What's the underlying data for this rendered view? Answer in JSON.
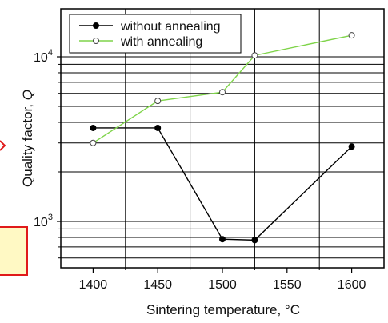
{
  "chart_data": {
    "type": "line",
    "xlabel": "Sintering temperature, °C",
    "ylabel_text": "Quality factor, ",
    "ylabel_var": "Q",
    "ylabel": "Quality factor, Q",
    "yscale": "log",
    "xlim": [
      1375,
      1625
    ],
    "ylim": [
      500,
      20000
    ],
    "xticks": [
      {
        "value": 1400,
        "label": "1400"
      },
      {
        "value": 1450,
        "label": "1450"
      },
      {
        "value": 1500,
        "label": "1500"
      },
      {
        "value": 1550,
        "label": "1550"
      },
      {
        "value": 1600,
        "label": "1600"
      }
    ],
    "x_gridlines": [
      1425,
      1475,
      1525,
      1575
    ],
    "yticks": [
      {
        "value": 1000,
        "base": "10",
        "exp": "3"
      },
      {
        "value": 10000,
        "base": "10",
        "exp": "4"
      }
    ],
    "y_gridlines": [
      600,
      700,
      800,
      900,
      1000,
      2000,
      3000,
      4000,
      5000,
      6000,
      7000,
      8000,
      9000,
      10000
    ],
    "grid": true,
    "legend": "top-left",
    "series": [
      {
        "name": "without annealing",
        "color": "#000000",
        "marker": "filled-circle",
        "x": [
          1400,
          1450,
          1500,
          1525,
          1600
        ],
        "y": [
          3700,
          3700,
          780,
          770,
          2850
        ]
      },
      {
        "name": "with annealing",
        "color": "#7fd44a",
        "marker": "open-circle",
        "x": [
          1400,
          1450,
          1500,
          1525,
          1600
        ],
        "y": [
          3000,
          5400,
          6100,
          10200,
          13500
        ]
      }
    ]
  },
  "annotations": {
    "edge_color": "#e01a1a",
    "box_fill": "#fff9c4"
  }
}
